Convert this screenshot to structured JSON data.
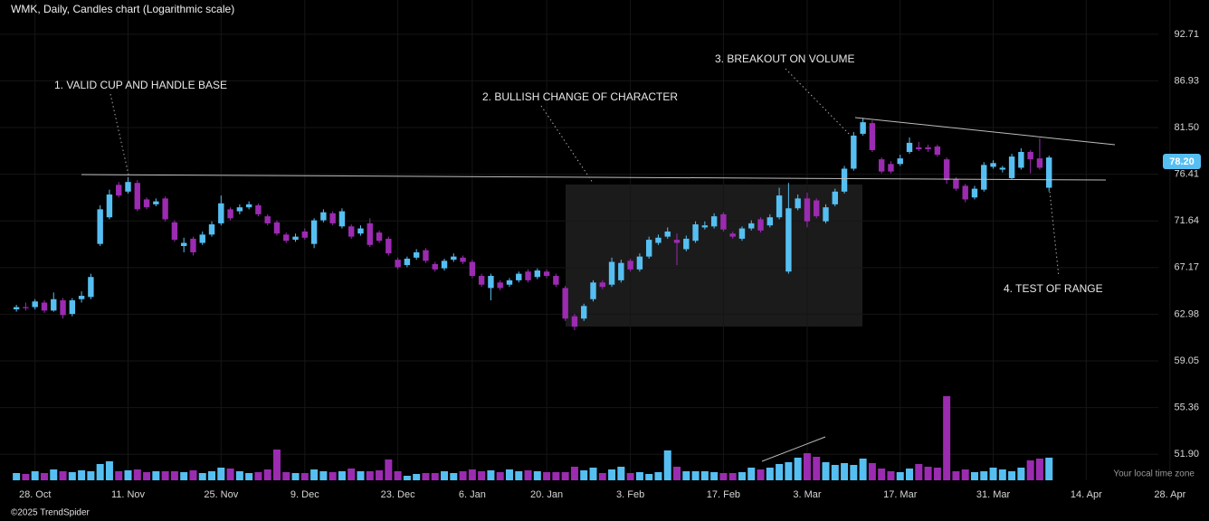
{
  "chart_data": {
    "type": "candlestick",
    "title": "WMK, Daily, Candles chart (Logarithmic scale)",
    "log_scale": true,
    "grid": true,
    "up_color": "#56bff2",
    "down_color": "#9b2bb0",
    "open": [
      63.4,
      63.6,
      63.6,
      64.0,
      63.3,
      64.2,
      63.0,
      64.3,
      64.5,
      69.4,
      72.0,
      75.3,
      74.6,
      75.5,
      73.8,
      73.3,
      73.9,
      71.5,
      69.2,
      69.9,
      69.5,
      70.3,
      71.4,
      72.8,
      72.6,
      73.0,
      73.2,
      72.1,
      71.5,
      70.3,
      69.8,
      70.6,
      69.4,
      71.7,
      72.4,
      71.1,
      71.1,
      70.4,
      71.4,
      70.5,
      69.9,
      67.9,
      67.4,
      68.1,
      68.8,
      67.5,
      67.1,
      67.9,
      68.1,
      67.7,
      66.4,
      65.3,
      65.8,
      65.6,
      66.0,
      66.8,
      66.3,
      66.8,
      66.4,
      65.3,
      62.8,
      62.6,
      64.3,
      65.8,
      65.6,
      66.0,
      67.8,
      67.0,
      68.2,
      69.5,
      70.1,
      69.8,
      68.9,
      69.7,
      71.0,
      71.1,
      72.3,
      70.4,
      69.9,
      70.9,
      71.8,
      71.2,
      72.0,
      66.8,
      72.9,
      73.9,
      73.7,
      71.6,
      73.3,
      74.6,
      77.0,
      80.8,
      82.0,
      78.0,
      77.5,
      77.5,
      78.8,
      79.3,
      79.3,
      79.4,
      78.0,
      75.9,
      75.2,
      74.0,
      74.8,
      77.2,
      76.9,
      76.0,
      77.1,
      78.8,
      78.1,
      75.0
    ],
    "high": [
      63.8,
      64.0,
      64.3,
      64.2,
      64.9,
      64.4,
      64.4,
      65.0,
      66.6,
      73.2,
      74.8,
      75.6,
      76.1,
      75.8,
      74.0,
      73.9,
      74.1,
      71.7,
      70.0,
      70.1,
      70.6,
      71.6,
      74.2,
      73.0,
      73.3,
      73.6,
      73.4,
      72.3,
      71.7,
      70.5,
      70.4,
      70.9,
      71.9,
      72.8,
      72.6,
      72.9,
      71.3,
      71.2,
      71.9,
      70.7,
      70.1,
      68.1,
      68.2,
      68.9,
      69.0,
      67.7,
      68.0,
      68.5,
      68.3,
      67.9,
      66.6,
      66.6,
      66.0,
      66.2,
      66.8,
      67.0,
      67.1,
      67.0,
      66.6,
      65.5,
      63.0,
      63.9,
      66.0,
      66.0,
      68.1,
      67.9,
      68.0,
      68.5,
      70.1,
      70.3,
      71.0,
      70.4,
      70.2,
      71.6,
      71.6,
      72.4,
      72.5,
      70.6,
      71.1,
      71.7,
      72.0,
      72.3,
      75.0,
      75.5,
      74.3,
      74.5,
      73.9,
      73.3,
      74.9,
      77.3,
      81.0,
      82.6,
      82.3,
      78.2,
      77.8,
      78.5,
      80.4,
      79.9,
      79.6,
      79.6,
      78.2,
      76.1,
      75.4,
      75.2,
      77.7,
      77.9,
      77.3,
      78.6,
      79.2,
      79.0,
      80.3,
      78.4
    ],
    "low": [
      63.2,
      63.3,
      63.4,
      63.1,
      63.2,
      62.6,
      62.8,
      64.0,
      64.3,
      69.2,
      71.8,
      74.0,
      74.4,
      72.6,
      72.8,
      73.1,
      71.6,
      69.6,
      68.6,
      68.3,
      69.3,
      70.1,
      71.2,
      71.7,
      72.3,
      72.8,
      72.1,
      71.2,
      70.2,
      69.5,
      69.6,
      69.8,
      69.0,
      71.5,
      71.2,
      70.9,
      69.9,
      70.2,
      69.1,
      69.5,
      68.3,
      67.0,
      67.2,
      67.9,
      67.6,
      66.8,
      66.9,
      67.7,
      67.5,
      66.2,
      65.4,
      64.2,
      65.1,
      65.4,
      65.8,
      65.8,
      66.1,
      66.2,
      65.4,
      62.4,
      61.6,
      62.4,
      64.1,
      65.2,
      65.4,
      65.8,
      66.8,
      66.8,
      68.0,
      69.3,
      69.9,
      67.4,
      68.7,
      69.5,
      70.8,
      70.9,
      70.6,
      69.9,
      69.7,
      70.7,
      70.5,
      71.0,
      71.8,
      66.6,
      72.7,
      71.0,
      71.9,
      71.4,
      73.1,
      74.4,
      76.8,
      80.6,
      78.8,
      76.5,
      76.5,
      77.3,
      78.6,
      78.9,
      78.8,
      78.3,
      75.4,
      74.7,
      73.5,
      73.8,
      74.6,
      77.0,
      76.6,
      75.8,
      76.9,
      76.5,
      76.9,
      74.6
    ],
    "close": [
      63.6,
      63.5,
      64.1,
      63.3,
      64.3,
      62.9,
      64.2,
      64.6,
      66.3,
      72.8,
      74.3,
      74.2,
      75.6,
      72.8,
      73.0,
      73.6,
      71.8,
      69.8,
      69.5,
      68.6,
      70.3,
      71.3,
      73.4,
      71.9,
      73.0,
      73.3,
      72.3,
      71.4,
      70.4,
      69.7,
      70.1,
      70.0,
      71.7,
      72.5,
      71.4,
      72.6,
      70.1,
      70.9,
      69.3,
      69.7,
      68.5,
      67.2,
      68.0,
      68.6,
      67.8,
      67.0,
      67.8,
      68.2,
      67.7,
      66.4,
      65.6,
      66.4,
      65.3,
      66.0,
      66.6,
      66.0,
      66.9,
      66.4,
      65.6,
      62.6,
      61.9,
      63.7,
      65.8,
      65.4,
      67.7,
      67.6,
      67.0,
      68.2,
      69.8,
      70.0,
      70.6,
      69.5,
      69.9,
      71.3,
      71.2,
      72.1,
      70.8,
      70.1,
      70.9,
      71.4,
      70.7,
      72.0,
      74.2,
      72.9,
      73.9,
      71.6,
      72.1,
      73.0,
      74.6,
      77.0,
      80.6,
      82.1,
      79.0,
      76.7,
      76.7,
      78.1,
      79.8,
      79.1,
      79.1,
      78.5,
      75.8,
      74.9,
      73.8,
      74.9,
      77.4,
      77.6,
      77.1,
      78.3,
      78.8,
      78.0,
      77.1,
      78.2
    ],
    "volume": [
      8,
      7,
      10,
      8,
      12,
      10,
      9,
      11,
      10,
      18,
      21,
      10,
      11,
      12,
      9,
      10,
      10,
      10,
      9,
      11,
      8,
      10,
      14,
      13,
      10,
      8,
      9,
      12,
      34,
      9,
      8,
      8,
      12,
      10,
      9,
      10,
      13,
      10,
      10,
      11,
      23,
      10,
      5,
      7,
      8,
      8,
      10,
      8,
      10,
      12,
      10,
      11,
      9,
      12,
      10,
      11,
      10,
      9,
      9,
      9,
      15,
      11,
      14,
      8,
      12,
      15,
      8,
      9,
      7,
      9,
      33,
      15,
      10,
      10,
      10,
      9,
      8,
      8,
      9,
      14,
      12,
      14,
      18,
      20,
      25,
      30,
      26,
      20,
      17,
      19,
      17,
      24,
      19,
      13,
      10,
      9,
      13,
      18,
      15,
      14,
      93,
      10,
      12,
      9,
      10,
      14,
      12,
      10,
      14,
      22,
      24,
      25
    ],
    "xlim": [
      -0.5,
      124.5
    ],
    "xticks": [
      {
        "value": 2,
        "label": "28. Oct"
      },
      {
        "value": 12,
        "label": "11. Nov"
      },
      {
        "value": 22,
        "label": "25. Nov"
      },
      {
        "value": 31,
        "label": "9. Dec"
      },
      {
        "value": 41,
        "label": "23. Dec"
      },
      {
        "value": 49,
        "label": "6. Jan"
      },
      {
        "value": 57,
        "label": "20. Jan"
      },
      {
        "value": 66,
        "label": "3. Feb"
      },
      {
        "value": 76,
        "label": "17. Feb"
      },
      {
        "value": 85,
        "label": "3. Mar"
      },
      {
        "value": 95,
        "label": "17. Mar"
      },
      {
        "value": 105,
        "label": "31. Mar"
      },
      {
        "value": 115,
        "label": "14. Apr"
      },
      {
        "value": 124,
        "label": "28. Apr"
      }
    ],
    "ylim": [
      50.07,
      97.2
    ],
    "yticks": [
      92.71,
      86.93,
      {
        "value": 81.5,
        "label": "81.50"
      },
      76.41,
      71.64,
      67.17,
      62.98,
      59.05,
      55.36,
      {
        "value": 51.9,
        "label": "51.90"
      }
    ],
    "last_price_label": "78.20",
    "annotations": [
      "1. VALID CUP AND HANDLE BASE",
      "2. BULLISH CHANGE OF CHARACTER",
      "3. BREAKOUT ON VOLUME",
      "4. TEST OF RANGE"
    ],
    "timezone_note": "Your local time zone",
    "footer": "©2025 TrendSpider"
  }
}
